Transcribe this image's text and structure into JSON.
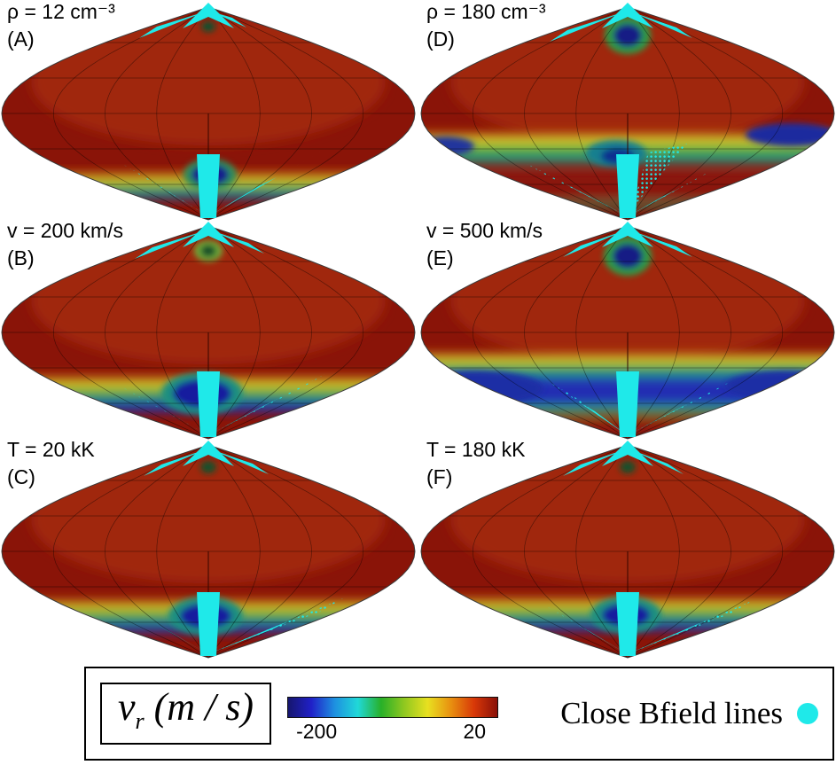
{
  "chart_data": {
    "type": "heatmap",
    "projection": "sinusoidal",
    "colorbar": {
      "var_italic": "v",
      "var_sub": "r",
      "var_rest": " (m / s)",
      "min": -200,
      "max": 20,
      "min_label": "-200",
      "max_label": "20",
      "colors": [
        "#16166e",
        "#2020c8",
        "#1e90e0",
        "#20d8d8",
        "#28b028",
        "#90c820",
        "#e8e020",
        "#e89010",
        "#d83808",
        "#8a1008"
      ]
    },
    "legend": {
      "label": "Close Bfield lines",
      "marker": "cyan-circle",
      "marker_color": "#1fe9e9"
    },
    "panels": [
      {
        "id": "A",
        "tag": "(A)",
        "title": "ρ = 12 cm⁻³",
        "visual": {
          "base": "#8a1408",
          "glow": "#a32a12",
          "stripes": [
            [
              "#b4440e",
              193,
              8
            ],
            [
              "#ddd32e",
              201,
              6
            ],
            [
              "#55a42e",
              207,
              7
            ],
            [
              "#1f8f7c",
              214,
              6
            ],
            [
              "#28339a",
              220,
              5
            ]
          ],
          "blobs": [
            [
              237,
              197,
              30,
              18,
              "#2f8f5a"
            ],
            [
              237,
              197,
              21,
              12,
              "#161d8c"
            ],
            [
              235,
              30,
              8,
              6,
              "#0f4f2f"
            ]
          ],
          "cyan": [
            [
              "s",
              "235,3 206,32 235,19 264,32"
            ],
            [
              "s",
              "232,13 157,43 177,30"
            ],
            [
              "s",
              "238,13 278,31 262,20"
            ],
            [
              "s",
              "226,246 244,246 248,174 222,174"
            ],
            [
              "d",
              "233,243 138,185 164,200"
            ],
            [
              "s",
              "233,243 176,208 191,217"
            ],
            [
              "d",
              "237,243 362,171 336,186"
            ],
            [
              "s",
              "237,243 312,200 292,210"
            ]
          ]
        }
      },
      {
        "id": "B",
        "tag": "(B)",
        "title": "v = 200 km/s",
        "visual": {
          "base": "#8a1408",
          "glow": "#a32a12",
          "stripes": [
            [
              "#b4440e",
              176,
              8
            ],
            [
              "#ddd32e",
              184,
              7
            ],
            [
              "#55a42e",
              191,
              8
            ],
            [
              "#1f8f7c",
              199,
              7
            ],
            [
              "#222fa8",
              206,
              12
            ]
          ],
          "blobs": [
            [
              228,
              197,
              46,
              24,
              "#1f8f80"
            ],
            [
              228,
              197,
              33,
              16,
              "#121f9e"
            ],
            [
              12,
              196,
              34,
              16,
              "#25379f"
            ],
            [
              235,
              36,
              16,
              12,
              "#6fae3a"
            ],
            [
              235,
              36,
              9,
              7,
              "#12502a"
            ]
          ],
          "cyan": [
            [
              "s",
              "235,3 206,32 235,19 264,32"
            ],
            [
              "s",
              "232,13 152,45 172,32"
            ],
            [
              "s",
              "238,13 298,39 280,27"
            ],
            [
              "s",
              "226,246 244,246 248,172 222,172"
            ],
            [
              "d",
              "233,243 133,187 159,202"
            ],
            [
              "s",
              "233,243 173,209 189,218"
            ],
            [
              "d",
              "237,243 367,175 341,190"
            ],
            [
              "s",
              "237,243 315,202 295,212"
            ]
          ]
        }
      },
      {
        "id": "C",
        "tag": "(C)",
        "title": "T = 20 kK",
        "visual": {
          "base": "#8a1408",
          "glow": "#a32a12",
          "stripes": [
            [
              "#b4440e",
              181,
              8
            ],
            [
              "#ddd32e",
              189,
              6
            ],
            [
              "#55a42e",
              195,
              8
            ],
            [
              "#1f8f7c",
              203,
              7
            ],
            [
              "#222fa8",
              210,
              10
            ]
          ],
          "blobs": [
            [
              232,
              201,
              42,
              22,
              "#1f8f80"
            ],
            [
              232,
              201,
              29,
              14,
              "#121f9e"
            ],
            [
              15,
              200,
              30,
              14,
              "#25379f"
            ],
            [
              445,
              196,
              26,
              11,
              "#2c6fae"
            ],
            [
              235,
              33,
              9,
              7,
              "#134f2a"
            ]
          ],
          "cyan": [
            [
              "s",
              "235,3 206,32 235,19 264,32"
            ],
            [
              "s",
              "232,13 162,43 182,30"
            ],
            [
              "s",
              "238,13 303,41 285,29"
            ],
            [
              "s",
              "226,246 244,246 248,174 222,174"
            ],
            [
              "d",
              "233,243 138,188 164,203"
            ],
            [
              "s",
              "233,243 176,210 192,219"
            ],
            [
              "d",
              "237,243 387,181 361,196"
            ],
            [
              "s",
              "237,243 327,206 307,216"
            ]
          ]
        }
      },
      {
        "id": "D",
        "tag": "(D)",
        "title": "ρ = 180 cm⁻³",
        "visual": {
          "base": "#8a1408",
          "glow": "#a32a12",
          "stripes": [
            [
              "#b4440e",
              148,
              8
            ],
            [
              "#e3dc34",
              156,
              7
            ],
            [
              "#46a436",
              163,
              12
            ],
            [
              "#1f9488",
              175,
              9
            ],
            [
              "#8a1408",
              196,
              26
            ],
            [
              "#2a8f5a",
              228,
              6
            ]
          ],
          "blobs": [
            [
              235,
              40,
              26,
              21,
              "#2f9a45"
            ],
            [
              235,
              40,
              16,
              13,
              "#121c85"
            ],
            [
              420,
              152,
              52,
              13,
              "#1c2a9e"
            ],
            [
              30,
              165,
              32,
              11,
              "#24349c"
            ],
            [
              222,
              173,
              34,
              15,
              "#157f8f"
            ],
            [
              224,
              176,
              19,
              9,
              "#0f2f8f"
            ]
          ],
          "cyan": [
            [
              "s",
              "235,3 206,32 235,19 264,32"
            ],
            [
              "s",
              "232,13 147,47 167,34"
            ],
            [
              "s",
              "238,13 308,43 290,31"
            ],
            [
              "s",
              "226,246 244,246 248,174 222,174"
            ],
            [
              "d",
              "233,243 118,183 144,198"
            ],
            [
              "s",
              "233,243 164,207 180,216"
            ],
            [
              "d",
              "237,243 332,191 306,206"
            ],
            [
              "s",
              "237,243 294,212 274,222"
            ],
            [
              "d",
              "240,235 302,162 258,172"
            ]
          ]
        }
      },
      {
        "id": "E",
        "tag": "(E)",
        "title": "v = 500 km/s",
        "visual": {
          "base": "#8a1408",
          "glow": "#a32a12",
          "stripes": [
            [
              "#b4440e",
              150,
              7
            ],
            [
              "#e3dc34",
              157,
              6
            ],
            [
              "#3fa136",
              163,
              8
            ],
            [
              "#1f9488",
              171,
              7
            ],
            [
              "#202db2",
              178,
              32
            ],
            [
              "#1f9488",
              210,
              6
            ],
            [
              "#55a42e",
              216,
              5
            ],
            [
              "#8f1d0a",
              226,
              16
            ]
          ],
          "blobs": [
            [
              235,
              42,
              27,
              22,
              "#2f9a45"
            ],
            [
              235,
              42,
              17,
              14,
              "#121c85"
            ],
            [
              60,
              191,
              80,
              20,
              "#1f2fa5"
            ],
            [
              415,
              188,
              70,
              17,
              "#1f2fa5"
            ]
          ],
          "cyan": [
            [
              "s",
              "235,3 206,32 235,19 264,32"
            ],
            [
              "s",
              "232,13 162,43 182,30"
            ],
            [
              "s",
              "238,13 308,43 290,31"
            ],
            [
              "s",
              "226,246 244,246 248,172 222,172"
            ],
            [
              "d",
              "233,243 148,185 174,200"
            ],
            [
              "s",
              "233,243 182,208 198,217"
            ],
            [
              "d",
              "237,243 352,183 326,198"
            ],
            [
              "s",
              "237,243 306,207 286,217"
            ]
          ]
        }
      },
      {
        "id": "F",
        "tag": "(F)",
        "title": "T = 180 kK",
        "visual": {
          "base": "#8a1408",
          "glow": "#a32a12",
          "stripes": [
            [
              "#b4440e",
              179,
              8
            ],
            [
              "#ddd32e",
              187,
              6
            ],
            [
              "#55a42e",
              193,
              8
            ],
            [
              "#1f8f7c",
              201,
              7
            ],
            [
              "#222fa8",
              208,
              10
            ]
          ],
          "blobs": [
            [
              233,
              200,
              40,
              21,
              "#1f8f80"
            ],
            [
              233,
              200,
              27,
              13,
              "#121f9e"
            ],
            [
              15,
              198,
              28,
              13,
              "#25379f"
            ],
            [
              235,
              33,
              9,
              7,
              "#134f2a"
            ],
            [
              448,
              196,
              24,
              10,
              "#2c6fae"
            ]
          ],
          "cyan": [
            [
              "s",
              "235,3 206,32 235,19 264,32"
            ],
            [
              "s",
              "232,13 162,43 182,30"
            ],
            [
              "s",
              "238,13 298,41 280,29"
            ],
            [
              "s",
              "226,246 244,246 248,174 222,174"
            ],
            [
              "d",
              "233,243 140,188 166,203"
            ],
            [
              "s",
              "233,243 177,210 193,219"
            ],
            [
              "d",
              "237,243 377,183 351,198"
            ],
            [
              "s",
              "237,243 321,207 301,217"
            ]
          ]
        }
      }
    ]
  }
}
